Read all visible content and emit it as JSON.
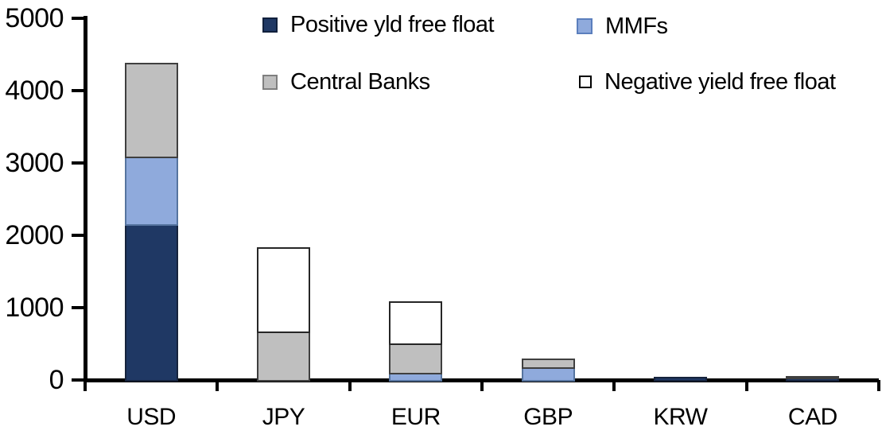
{
  "chart_data": {
    "type": "bar",
    "stacked": true,
    "title": "",
    "xlabel": "",
    "ylabel": "",
    "categories": [
      "USD",
      "JPY",
      "EUR",
      "GBP",
      "KRW",
      "CAD"
    ],
    "series": [
      {
        "name": "Positive yld free float",
        "color": "#1F3864",
        "border": "#16233C",
        "swatch_border": "#10203C",
        "values": [
          2150,
          0,
          0,
          0,
          40,
          30
        ]
      },
      {
        "name": "MMFs",
        "color": "#8FAADC",
        "border": "#56749F",
        "swatch_border": "#5B7FBD",
        "values": [
          940,
          0,
          100,
          180,
          0,
          0
        ]
      },
      {
        "name": "Central Banks",
        "color": "#BFBFBF",
        "border": "#3F3F3F",
        "swatch_border": "#7F7F7F",
        "values": [
          1290,
          670,
          410,
          120,
          0,
          30
        ]
      },
      {
        "name": "Negative yield free float",
        "color": "#FFFFFF",
        "border": "#262626",
        "swatch_border": "#000000",
        "values": [
          0,
          1160,
          580,
          0,
          0,
          0
        ]
      }
    ],
    "ylim": [
      0,
      5000
    ],
    "yticks": [
      0,
      1000,
      2000,
      3000,
      4000,
      5000
    ],
    "ytick_labels": [
      "0",
      "1000",
      "2000",
      "3000",
      "4000",
      "5000"
    ],
    "grid": false,
    "legend_position": "top",
    "background": "#FFFFFF",
    "axis_color": "#000000"
  }
}
